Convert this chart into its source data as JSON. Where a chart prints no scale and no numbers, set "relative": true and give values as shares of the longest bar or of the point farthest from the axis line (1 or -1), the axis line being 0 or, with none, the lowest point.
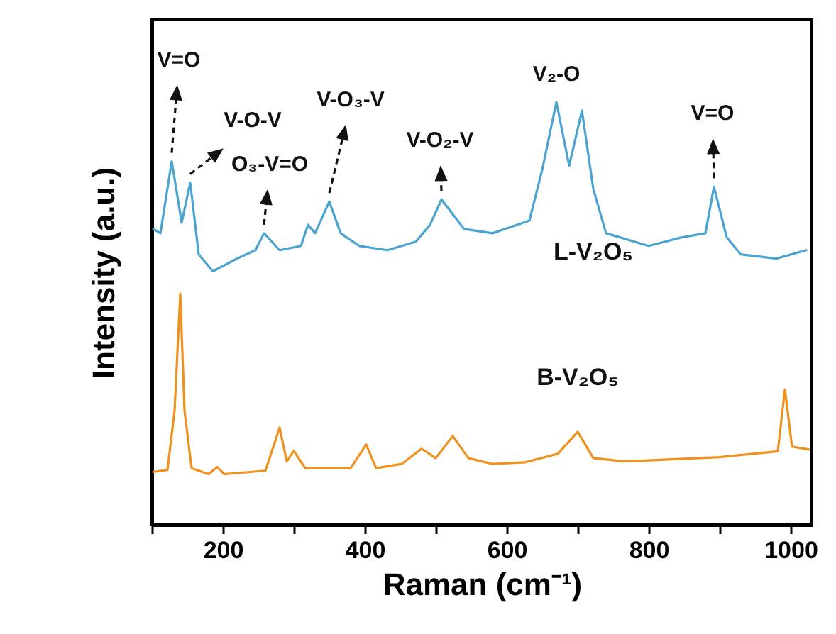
{
  "chart_data": {
    "type": "line",
    "relative": true,
    "xlabel": "Raman (cm⁻¹)",
    "ylabel": "Intensity (a.u.)",
    "xlim": [
      100,
      1030
    ],
    "xticks": [
      {
        "value": 100,
        "label": null
      },
      200,
      {
        "value": 300,
        "label": null
      },
      400,
      {
        "value": 500,
        "label": null
      },
      600,
      {
        "value": 700,
        "label": null
      },
      800,
      {
        "value": 900,
        "label": null
      },
      1000
    ],
    "grid": false,
    "marker": "none",
    "line_style": "solid",
    "series": [
      {
        "name": "L-V₂O₅",
        "color": "#4aa3d0",
        "x": [
          102,
          112,
          128,
          142,
          154,
          166,
          186,
          220,
          246,
          258,
          280,
          310,
          320,
          330,
          350,
          366,
          392,
          432,
          472,
          492,
          508,
          540,
          580,
          606,
          632,
          650,
          670,
          688,
          706,
          722,
          740,
          800,
          846,
          880,
          892,
          910,
          930,
          980,
          1022
        ],
        "values": [
          0.7,
          0.69,
          0.86,
          0.715,
          0.81,
          0.64,
          0.6,
          0.63,
          0.65,
          0.69,
          0.65,
          0.66,
          0.71,
          0.69,
          0.765,
          0.69,
          0.66,
          0.65,
          0.67,
          0.71,
          0.77,
          0.7,
          0.69,
          0.705,
          0.72,
          0.84,
          1.0,
          0.85,
          0.98,
          0.795,
          0.69,
          0.66,
          0.68,
          0.69,
          0.8,
          0.68,
          0.64,
          0.63,
          0.65
        ]
      },
      {
        "name": "B-V₂O₅",
        "color": "#f0901e",
        "x": [
          102,
          122,
          132,
          140,
          146,
          156,
          180,
          192,
          202,
          260,
          280,
          290,
          300,
          316,
          380,
          402,
          416,
          452,
          480,
          500,
          524,
          546,
          580,
          626,
          672,
          700,
          722,
          766,
          900,
          982,
          992,
          1002,
          1026
        ],
        "values": [
          0.125,
          0.13,
          0.27,
          0.547,
          0.27,
          0.134,
          0.12,
          0.137,
          0.12,
          0.128,
          0.23,
          0.15,
          0.175,
          0.134,
          0.134,
          0.19,
          0.134,
          0.144,
          0.18,
          0.158,
          0.21,
          0.158,
          0.144,
          0.148,
          0.168,
          0.22,
          0.158,
          0.15,
          0.16,
          0.174,
          0.32,
          0.185,
          0.178
        ]
      }
    ],
    "annotations": [
      {
        "text": "V=O",
        "x": 128,
        "y": 0.86
      },
      {
        "text": "V-O-V",
        "x": 154,
        "y": 0.81
      },
      {
        "text": "O₃-V=O",
        "x": 258,
        "y": 0.69
      },
      {
        "text": "V-O₃-V",
        "x": 350,
        "y": 0.765
      },
      {
        "text": "V-O₂-V",
        "x": 508,
        "y": 0.77
      },
      {
        "text": "V₂-O",
        "x": 670,
        "y": 1.0
      },
      {
        "text": "V=O",
        "x": 892,
        "y": 0.8
      }
    ]
  }
}
